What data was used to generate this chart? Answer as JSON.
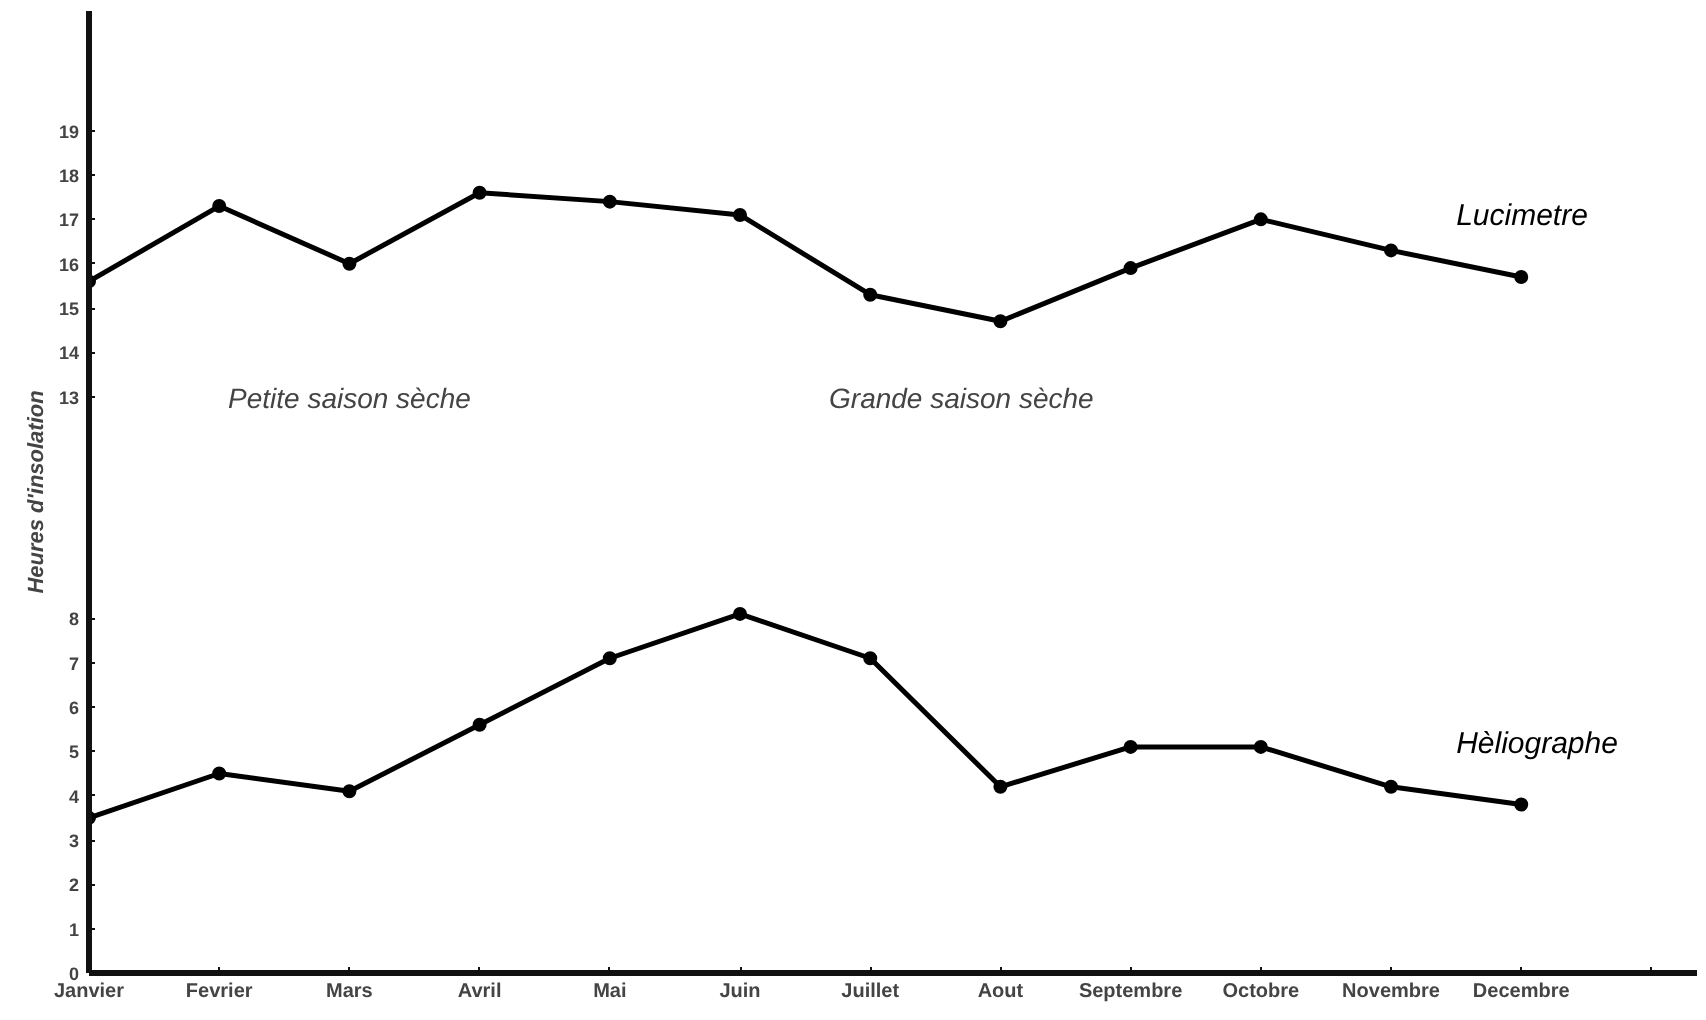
{
  "chart_data": {
    "type": "line",
    "ylabel": "Heures d'insolation",
    "categories": [
      "Janvier",
      "Fevrier",
      "Mars",
      "Avril",
      "Mai",
      "Juin",
      "Juillet",
      "Aout",
      "Septembre",
      "Octobre",
      "Novembre",
      "Decembre"
    ],
    "series": [
      {
        "name": "Lucimetre",
        "color": "#000000",
        "values": [
          15.6,
          17.3,
          16.0,
          17.6,
          17.4,
          17.1,
          15.3,
          14.7,
          15.9,
          17.0,
          16.3,
          15.7
        ]
      },
      {
        "name": "Hèliographe",
        "color": "#000000",
        "values": [
          3.5,
          4.5,
          4.1,
          5.6,
          7.1,
          8.1,
          7.1,
          4.2,
          5.1,
          5.1,
          4.2,
          3.8
        ]
      }
    ],
    "ylim": [
      0,
      21.7
    ],
    "yticks": [
      0,
      1,
      2,
      3,
      4,
      5,
      6,
      7,
      8,
      13,
      14,
      15,
      16,
      17,
      18,
      19
    ],
    "annotations": [
      "Petite saison sèche",
      "Grande saison sèche"
    ],
    "marker": "circle",
    "line_style": "solid",
    "grid": false
  }
}
